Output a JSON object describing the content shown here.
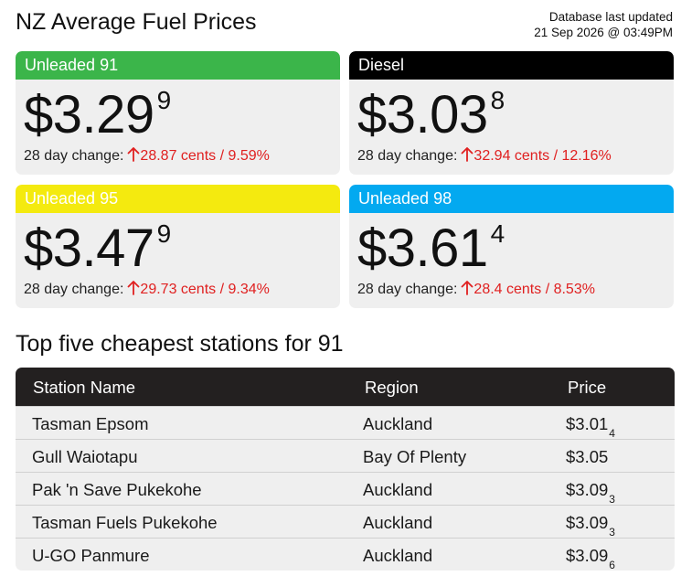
{
  "page": {
    "title": "NZ Average Fuel Prices",
    "updated_label": "Database last updated",
    "updated_value": "21 Sep 2026 @ 03:49PM"
  },
  "colors": {
    "unleaded91": "#3bb54a",
    "diesel": "#000000",
    "unleaded95": "#f4ea0f",
    "unleaded98": "#03a9f0",
    "increase": "#e02020"
  },
  "change_label": "28 day change:",
  "cards": [
    {
      "name": "Unleaded 91",
      "price_main": "$3.29",
      "price_sup": "9",
      "change": "28.87 cents / 9.59%",
      "direction_icon": "arrow-up-icon"
    },
    {
      "name": "Diesel",
      "price_main": "$3.03",
      "price_sup": "8",
      "change": "32.94 cents / 12.16%",
      "direction_icon": "arrow-up-icon"
    },
    {
      "name": "Unleaded 95",
      "price_main": "$3.47",
      "price_sup": "9",
      "change": "29.73 cents / 9.34%",
      "direction_icon": "arrow-up-icon"
    },
    {
      "name": "Unleaded 98",
      "price_main": "$3.61",
      "price_sup": "4",
      "change": "28.4 cents / 8.53%",
      "direction_icon": "arrow-up-icon"
    }
  ],
  "stations": {
    "title": "Top five cheapest stations for 91",
    "headers": [
      "Station Name",
      "Region",
      "Price"
    ],
    "rows": [
      {
        "name": "Tasman Epsom",
        "region": "Auckland",
        "price_main": "$3.01",
        "price_sup": "4"
      },
      {
        "name": "Gull Waiotapu",
        "region": "Bay Of Plenty",
        "price_main": "$3.05",
        "price_sup": ""
      },
      {
        "name": "Pak 'n Save Pukekohe",
        "region": "Auckland",
        "price_main": "$3.09",
        "price_sup": "3"
      },
      {
        "name": "Tasman Fuels Pukekohe",
        "region": "Auckland",
        "price_main": "$3.09",
        "price_sup": "3"
      },
      {
        "name": "U-GO Panmure",
        "region": "Auckland",
        "price_main": "$3.09",
        "price_sup": "6"
      }
    ]
  }
}
